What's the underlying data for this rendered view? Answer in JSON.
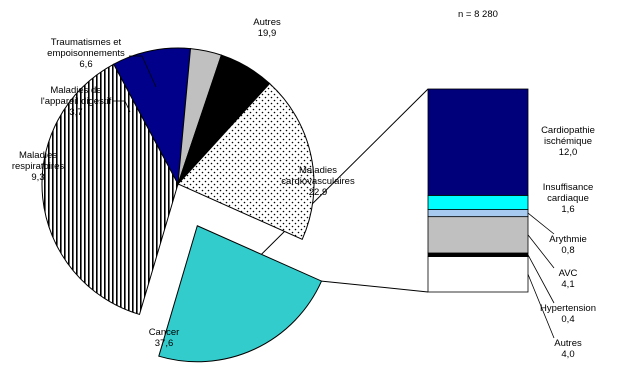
{
  "chart_data": [
    {
      "type": "pie",
      "annotation": "n = 8 280",
      "slices": [
        {
          "name": "Maladies cardiovasculaires",
          "label_lines": [
            "Maladies",
            "cardiovasculaires"
          ],
          "value": 22.9,
          "value_label": "22,9",
          "fill": "#33cccc",
          "pattern": "solid",
          "exploded": true
        },
        {
          "name": "Cancer",
          "label_lines": [
            "Cancer"
          ],
          "value": 37.6,
          "value_label": "37,6",
          "fill": "#ffffff",
          "pattern": "vertical-stripes"
        },
        {
          "name": "Maladies respiratoires",
          "label_lines": [
            "Maladies",
            "respiratoires"
          ],
          "value": 9.3,
          "value_label": "9,3",
          "fill": "#00008b",
          "pattern": "solid"
        },
        {
          "name": "Maladies de l'appareil digestif",
          "label_lines": [
            "Maladies de",
            "l'appareil digestif"
          ],
          "value": 3.7,
          "value_label": "3,7",
          "fill": "#c0c0c0",
          "pattern": "solid"
        },
        {
          "name": "Traumatismes et empoisonnements",
          "label_lines": [
            "Traumatismes et",
            "empoisonnements"
          ],
          "value": 6.6,
          "value_label": "6,6",
          "fill": "#000000",
          "pattern": "solid"
        },
        {
          "name": "Autres",
          "label_lines": [
            "Autres"
          ],
          "value": 19.9,
          "value_label": "19,9",
          "fill": "#ffffff",
          "pattern": "dots"
        }
      ]
    },
    {
      "type": "bar",
      "stacked": true,
      "segments": [
        {
          "name": "Autres",
          "label_lines": [
            "Autres"
          ],
          "value": 4.0,
          "value_label": "4,0",
          "fill": "#ffffff"
        },
        {
          "name": "Hypertension",
          "label_lines": [
            "Hypertension"
          ],
          "value": 0.4,
          "value_label": "0,4",
          "fill": "#000000"
        },
        {
          "name": "AVC",
          "label_lines": [
            "AVC"
          ],
          "value": 4.1,
          "value_label": "4,1",
          "fill": "#c0c0c0"
        },
        {
          "name": "Arythmie",
          "label_lines": [
            "Arythmie"
          ],
          "value": 0.8,
          "value_label": "0,8",
          "fill": "#a6caf0"
        },
        {
          "name": "Insuffisance cardiaque",
          "label_lines": [
            "Insuffisance",
            "cardiaque"
          ],
          "value": 1.6,
          "value_label": "1,6",
          "fill": "#00ffff"
        },
        {
          "name": "Cardiopathie ischémique",
          "label_lines": [
            "Cardiopathie",
            "ischémique"
          ],
          "value": 12.0,
          "value_label": "12,0",
          "fill": "#00007b"
        }
      ]
    }
  ]
}
